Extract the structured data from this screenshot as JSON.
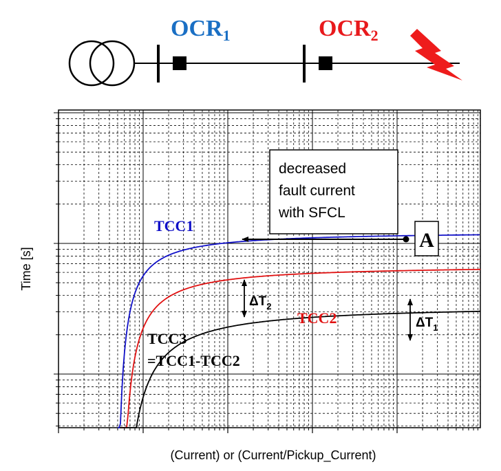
{
  "relay1": {
    "label": "OCR",
    "sub": "1",
    "color": "#1a6fc4"
  },
  "relay2": {
    "label": "OCR",
    "sub": "2",
    "color": "#e8191c"
  },
  "axes": {
    "ylabel": "Time [s]",
    "xlabel": "(Current) or (Current/Pickup_Current)",
    "y_scale": "log",
    "x_scale": "log",
    "grid": true
  },
  "annotation_box": {
    "line1": "decreased",
    "line2": "fault current",
    "line3": "with SFCL"
  },
  "point_label": "A",
  "curves": [
    {
      "name": "TCC1",
      "color": "#1010c8"
    },
    {
      "name": "TCC2",
      "color": "#e01010"
    },
    {
      "name": "TCC3",
      "color": "#000000"
    }
  ],
  "tcc3_label": {
    "line1": "TCC3",
    "line2": "=TCC1-TCC2"
  },
  "delta_t2": {
    "symbol": "ΔT",
    "sub": "2"
  },
  "delta_t1": {
    "symbol": "ΔT",
    "sub": "1"
  }
}
